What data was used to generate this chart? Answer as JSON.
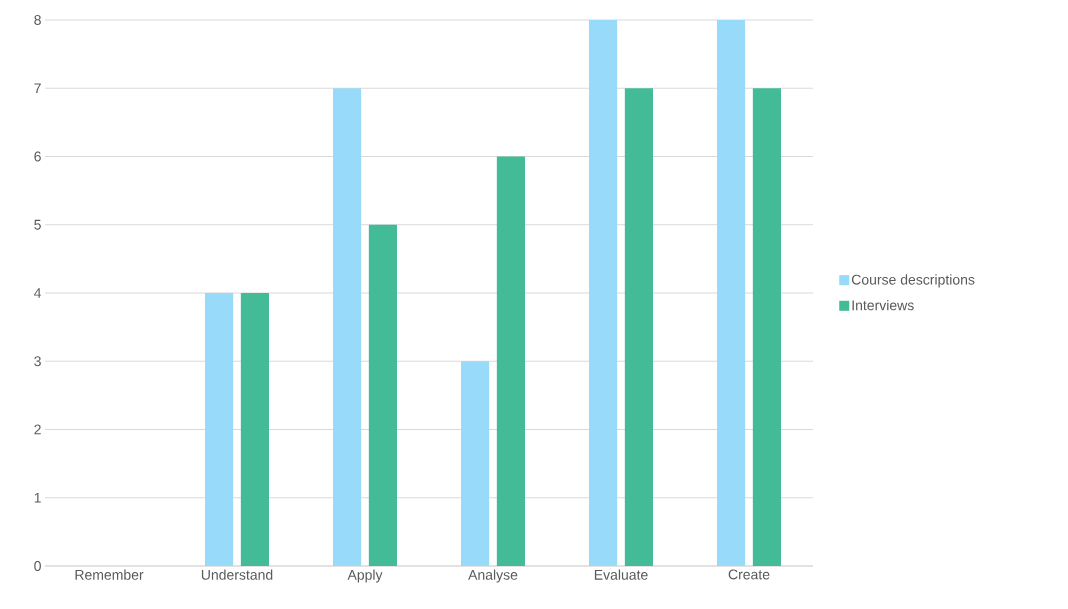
{
  "chart_data": {
    "type": "bar",
    "categories": [
      "Remember",
      "Understand",
      "Apply",
      "Analyse",
      "Evaluate",
      "Create"
    ],
    "series": [
      {
        "name": "Course descriptions",
        "color": "#97daf9",
        "values": [
          0,
          4,
          7,
          3,
          8,
          8
        ]
      },
      {
        "name": "Interviews",
        "color": "#43bb96",
        "values": [
          0,
          4,
          5,
          6,
          7,
          7
        ]
      }
    ],
    "ylim": [
      0,
      8
    ],
    "yticks": [
      0,
      1,
      2,
      3,
      4,
      5,
      6,
      7,
      8
    ],
    "grid": "y",
    "legend": "right"
  }
}
